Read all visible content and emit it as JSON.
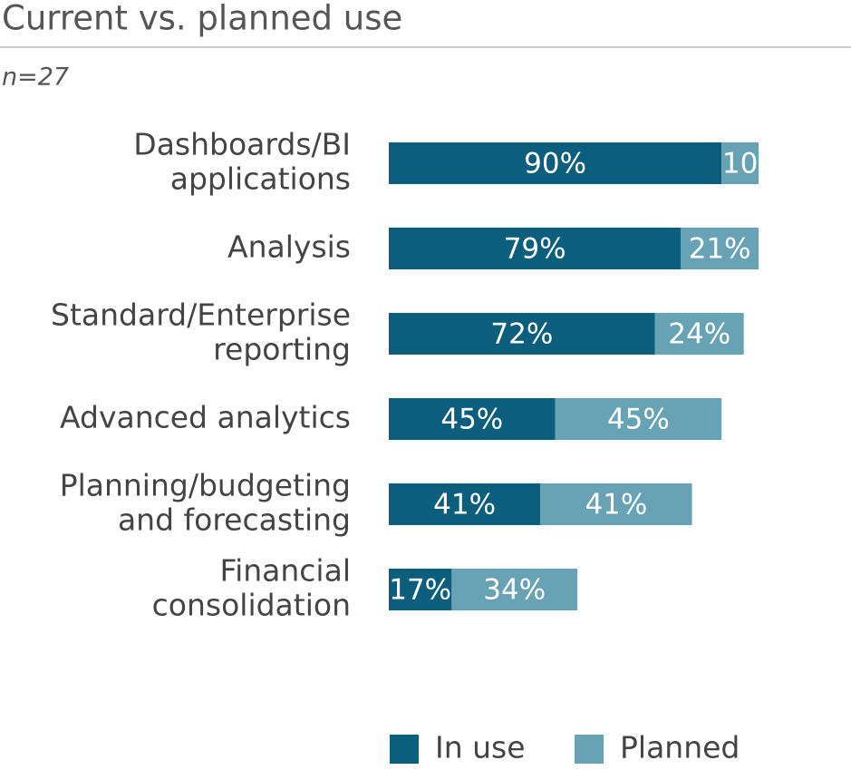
{
  "chart_data": {
    "type": "stacked-bar-horizontal",
    "title": "Current vs. planned use",
    "subtitle": "n=27",
    "categories": [
      [
        "Dashboards/BI",
        "applications"
      ],
      [
        "Analysis"
      ],
      [
        "Standard/Enterprise",
        "reporting"
      ],
      [
        "Advanced analytics"
      ],
      [
        "Planning/budgeting",
        "and forecasting"
      ],
      [
        "Financial",
        "consolidation"
      ]
    ],
    "series": [
      {
        "name": "In use",
        "color": "#0b5f7c",
        "values": [
          90,
          79,
          72,
          45,
          41,
          17
        ],
        "value_labels": [
          "90%",
          "79%",
          "72%",
          "45%",
          "41%",
          "17%"
        ]
      },
      {
        "name": "Planned",
        "color": "#67a3b5",
        "values": [
          10,
          21,
          24,
          45,
          41,
          34
        ],
        "value_labels": [
          "10",
          "21%",
          "24%",
          "45%",
          "41%",
          "34%"
        ]
      }
    ],
    "xlim": [
      0,
      100
    ],
    "legend": "bottom"
  }
}
